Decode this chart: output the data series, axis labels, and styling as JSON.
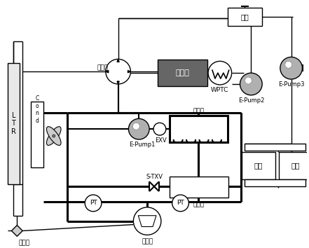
{
  "bg_color": "#ffffff",
  "lc": "#000000",
  "lw_thick": 2.2,
  "lw_thin": 1.0,
  "lw_med": 1.5,
  "components": {
    "ltr_label": "L\nT\nR",
    "cond_label": "Cond",
    "battery_label": "电池组",
    "wptc_label": "WPTC",
    "epump1_label": "E-Pump1",
    "epump2_label": "E-Pump2",
    "epump3_label": "E-Pump3",
    "water_tank_label": "水壶",
    "chiller_label": "冷水机",
    "exv_label": "EXV",
    "stxv_label": "S-TXV",
    "evap_label": "蔷发器",
    "compressor_label": "压缩机",
    "motor_label": "电机",
    "ecu_label": "电控",
    "four_way_label": "四通阀",
    "three_way_label": "三通阀",
    "pt_label": "PT"
  }
}
